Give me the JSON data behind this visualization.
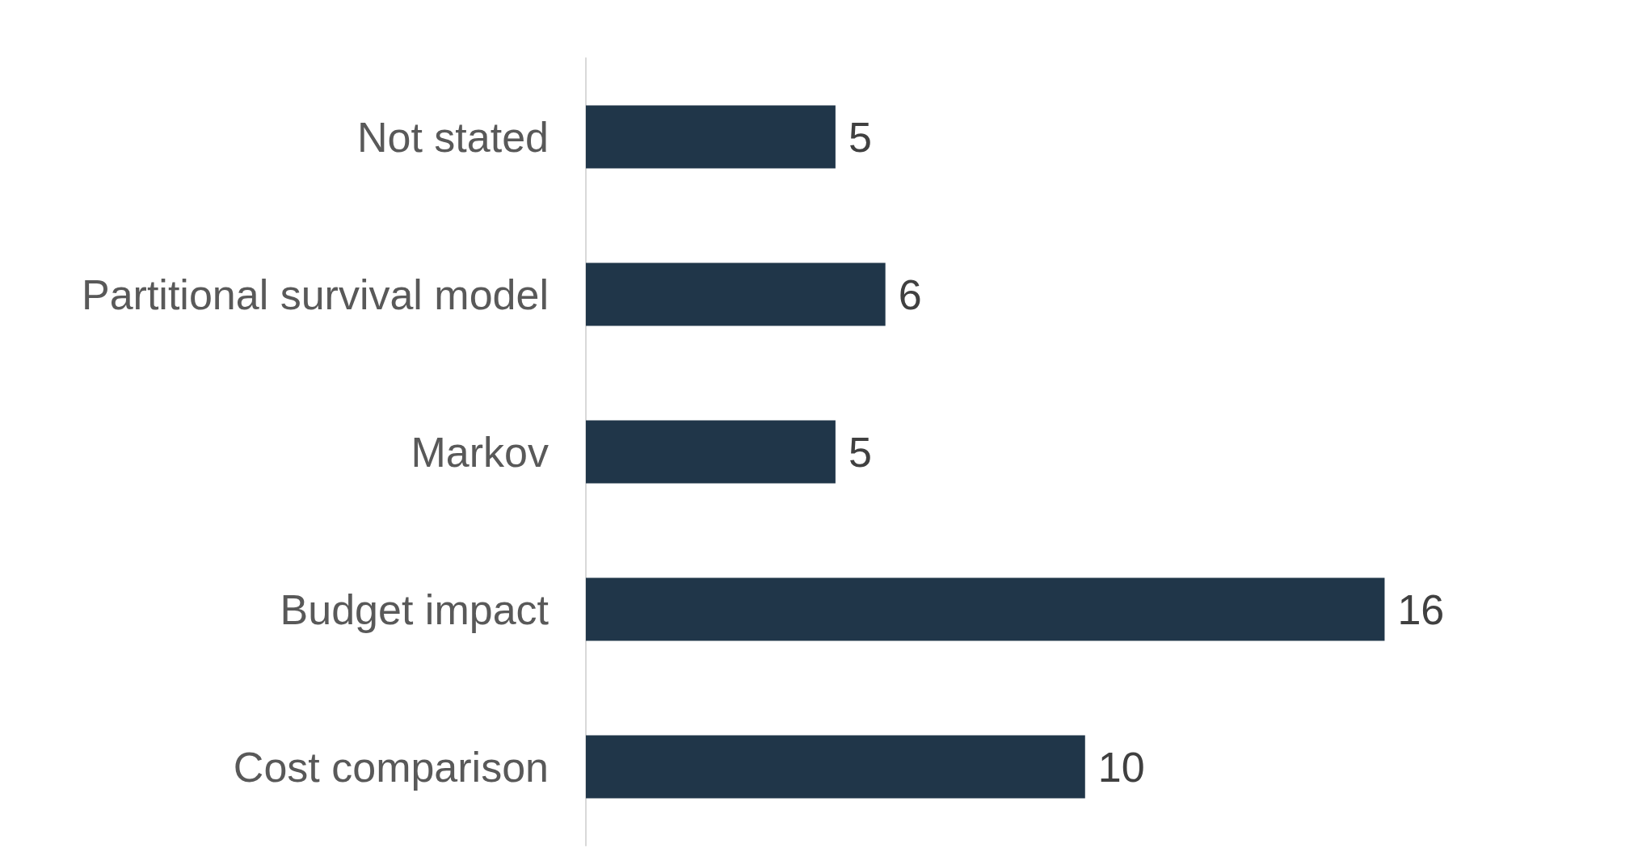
{
  "chart_data": {
    "type": "bar",
    "orientation": "horizontal",
    "categories": [
      "Not stated",
      "Partitional survival model",
      "Markov",
      "Budget impact",
      "Cost comparison"
    ],
    "values": [
      5,
      6,
      5,
      16,
      10
    ],
    "color": "#203649",
    "data_labels": true
  }
}
